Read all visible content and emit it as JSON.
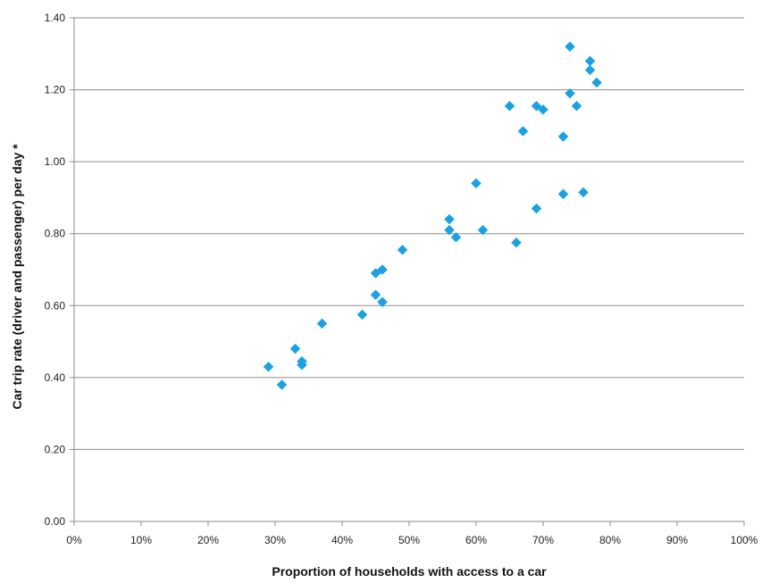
{
  "chart_data": {
    "type": "scatter",
    "title": "",
    "xlabel": "Proportion of households with access to a car",
    "ylabel": "Car trip rate (driver and passenger) per day *",
    "xlim": [
      0,
      100
    ],
    "ylim": [
      0,
      1.4
    ],
    "x_ticks": [
      "0%",
      "10%",
      "20%",
      "30%",
      "40%",
      "50%",
      "60%",
      "70%",
      "80%",
      "90%",
      "100%"
    ],
    "y_ticks": [
      "0.00",
      "0.20",
      "0.40",
      "0.60",
      "0.80",
      "1.00",
      "1.20",
      "1.40"
    ],
    "grid": "horizontal",
    "legend": "none",
    "marker": "diamond",
    "marker_color": "#1ba1e2",
    "points": [
      {
        "x": 29,
        "y": 0.43
      },
      {
        "x": 31,
        "y": 0.38
      },
      {
        "x": 33,
        "y": 0.48
      },
      {
        "x": 34,
        "y": 0.445
      },
      {
        "x": 34,
        "y": 0.435
      },
      {
        "x": 37,
        "y": 0.55
      },
      {
        "x": 43,
        "y": 0.575
      },
      {
        "x": 45,
        "y": 0.69
      },
      {
        "x": 45,
        "y": 0.63
      },
      {
        "x": 46,
        "y": 0.7
      },
      {
        "x": 46,
        "y": 0.61
      },
      {
        "x": 49,
        "y": 0.755
      },
      {
        "x": 56,
        "y": 0.84
      },
      {
        "x": 56,
        "y": 0.81
      },
      {
        "x": 57,
        "y": 0.79
      },
      {
        "x": 60,
        "y": 0.94
      },
      {
        "x": 61,
        "y": 0.81
      },
      {
        "x": 65,
        "y": 1.155
      },
      {
        "x": 66,
        "y": 0.775
      },
      {
        "x": 67,
        "y": 1.085
      },
      {
        "x": 69,
        "y": 1.155
      },
      {
        "x": 69,
        "y": 0.87
      },
      {
        "x": 70,
        "y": 1.145
      },
      {
        "x": 73,
        "y": 1.07
      },
      {
        "x": 73,
        "y": 0.91
      },
      {
        "x": 74,
        "y": 1.32
      },
      {
        "x": 74,
        "y": 1.19
      },
      {
        "x": 75,
        "y": 1.155
      },
      {
        "x": 76,
        "y": 0.915
      },
      {
        "x": 77,
        "y": 1.28
      },
      {
        "x": 77,
        "y": 1.255
      },
      {
        "x": 78,
        "y": 1.22
      }
    ]
  }
}
